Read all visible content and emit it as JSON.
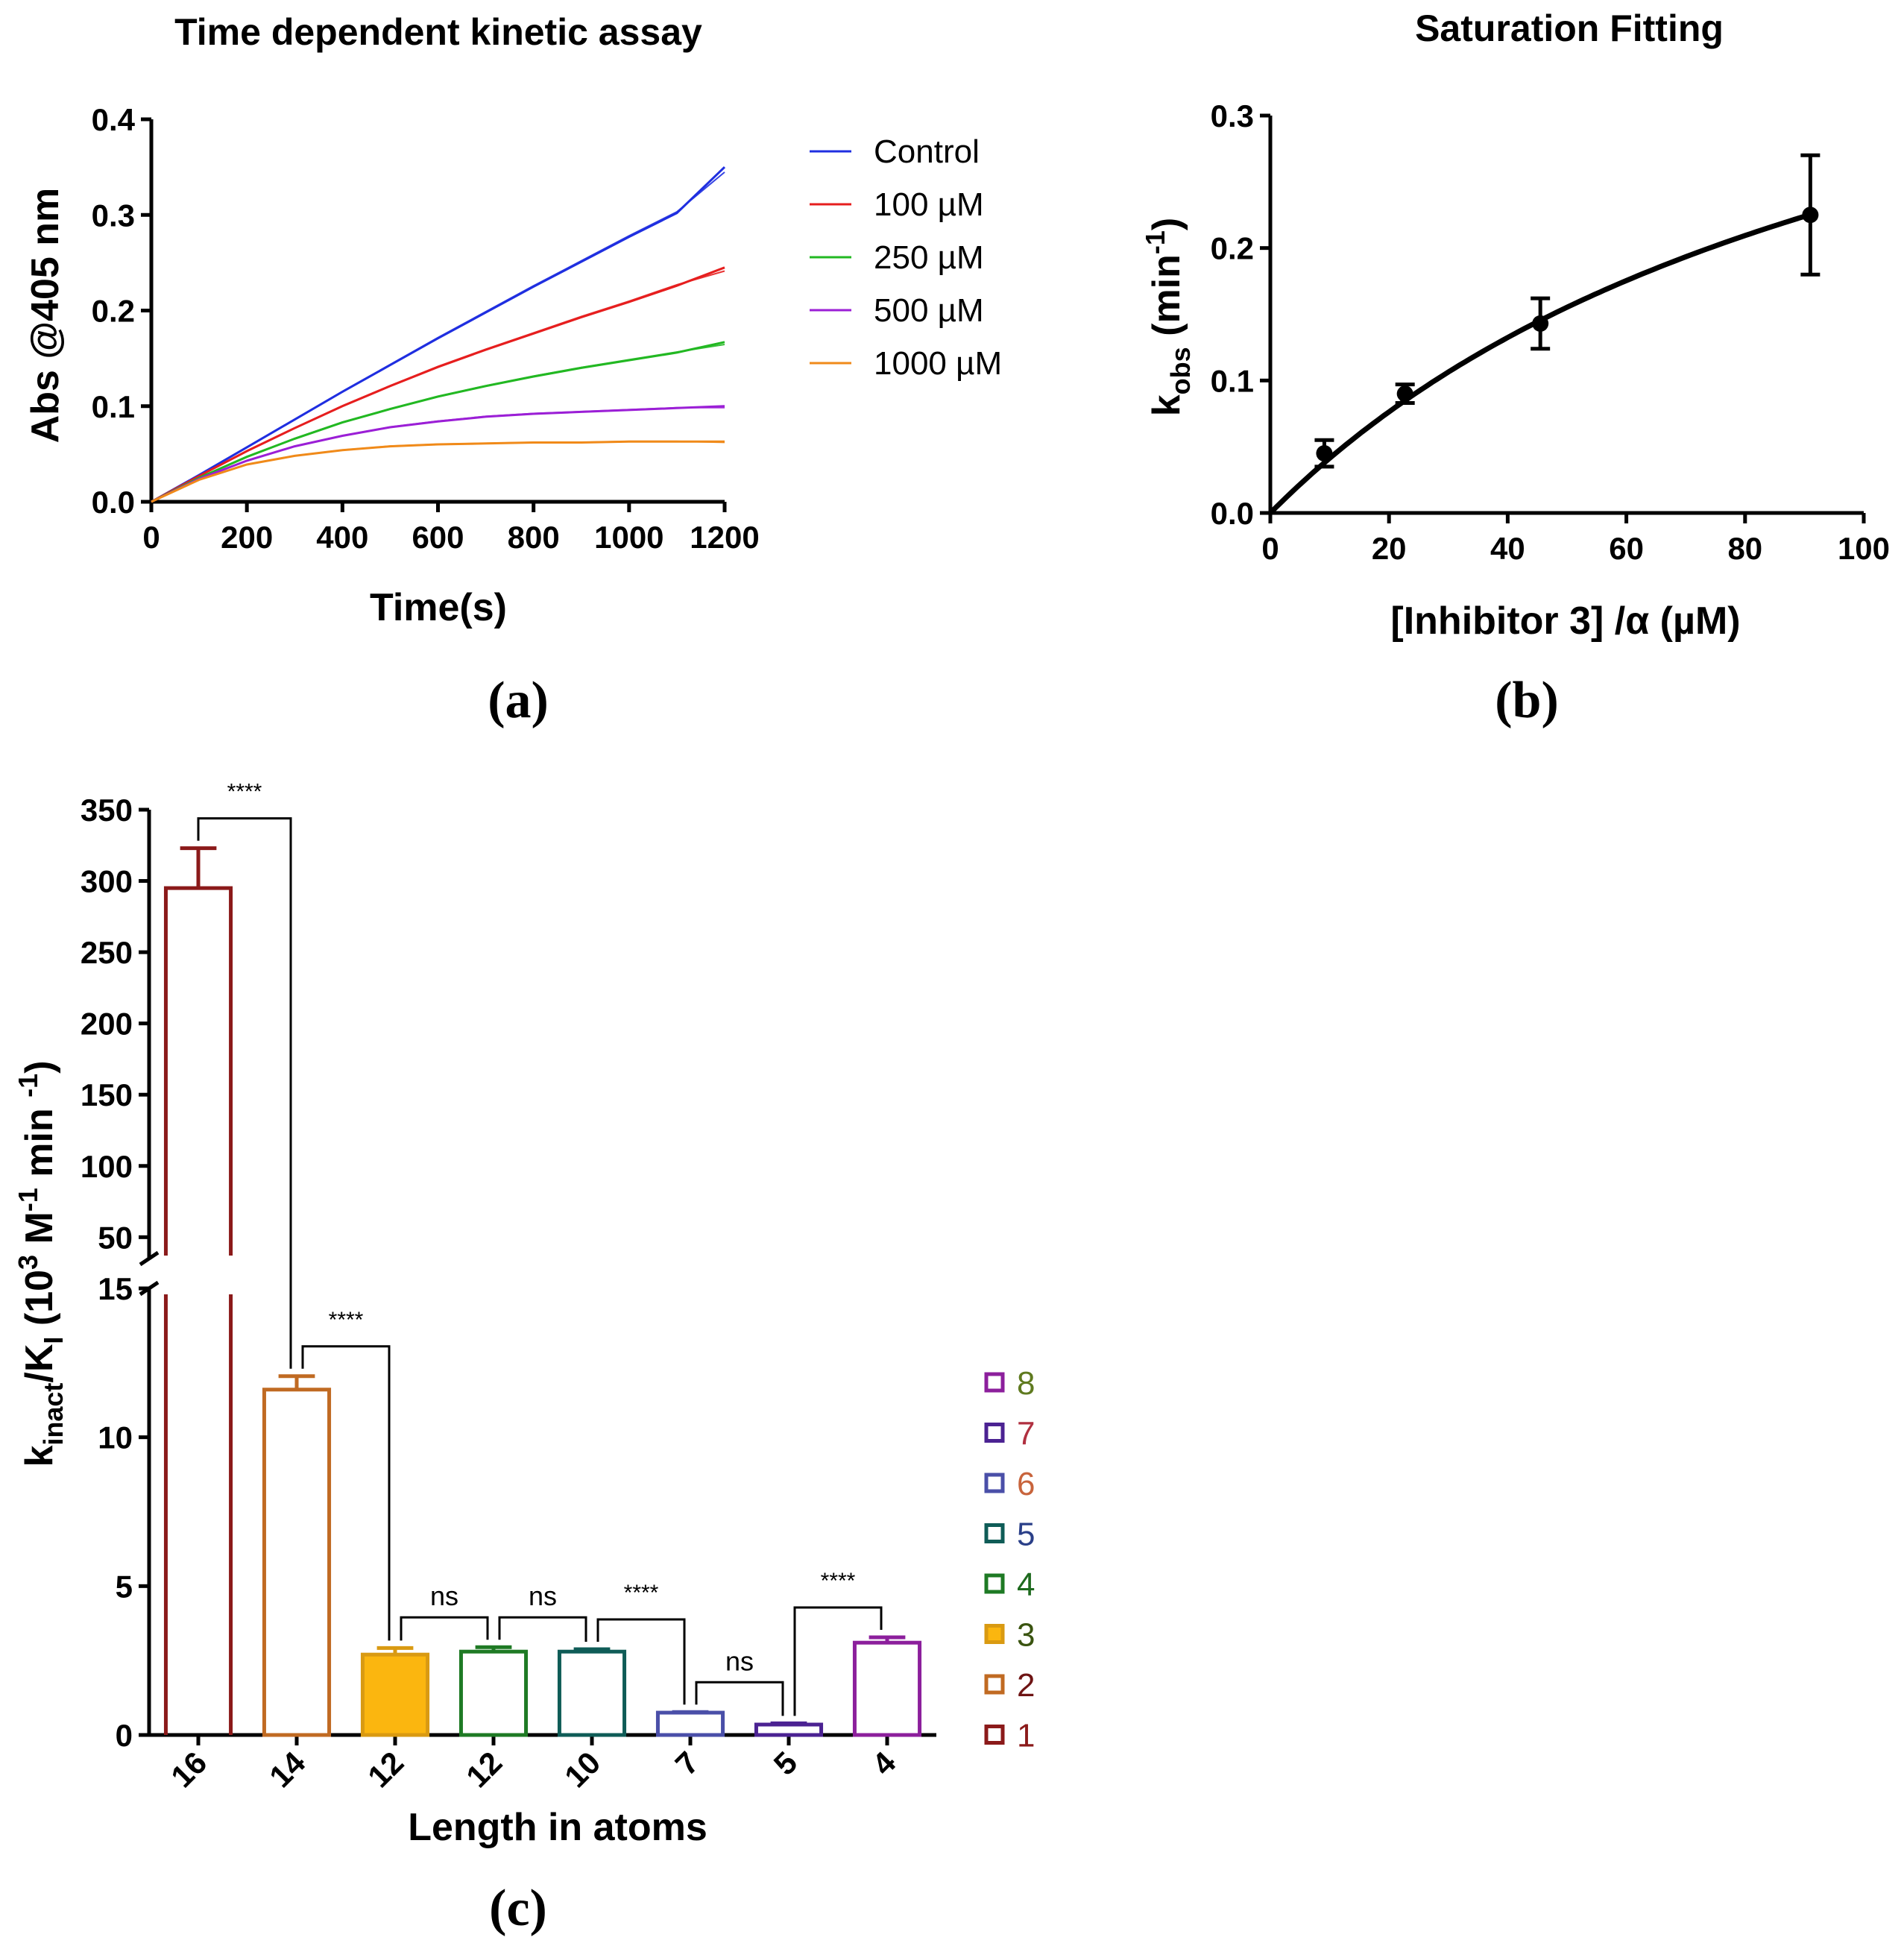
{
  "panel_labels": [
    "(a)",
    "(b)",
    "(c)"
  ],
  "colors": {
    "control": "#1f2fe0",
    "c100": "#e61e1e",
    "c250": "#22b822",
    "c500": "#9b1fd6",
    "c1000": "#f08a1a",
    "axis": "#000000"
  },
  "chart_data": [
    {
      "type": "line",
      "title": "Time dependent kinetic assay",
      "xlabel": "Time(s)",
      "ylabel": "Abs @405 nm",
      "xlim": [
        0,
        1200
      ],
      "ylim": [
        0,
        0.4
      ],
      "xticks": [
        "0",
        "200",
        "400",
        "600",
        "800",
        "1000",
        "1200"
      ],
      "yticks": [
        "0.0",
        "0.1",
        "0.2",
        "0.3",
        "0.4"
      ],
      "x": [
        0,
        100,
        200,
        300,
        400,
        500,
        600,
        700,
        800,
        900,
        1000,
        1100,
        1200
      ],
      "series": [
        {
          "name": "Control",
          "color": "#1f2fe0",
          "values": [
            0,
            0.028,
            0.057,
            0.086,
            0.115,
            0.143,
            0.171,
            0.198,
            0.225,
            0.251,
            0.277,
            0.302,
            0.35
          ]
        },
        {
          "name": "100 µM",
          "color": "#e61e1e",
          "values": [
            0,
            0.027,
            0.053,
            0.077,
            0.1,
            0.121,
            0.141,
            0.159,
            0.176,
            0.193,
            0.209,
            0.226,
            0.245
          ]
        },
        {
          "name": "250 µM",
          "color": "#22b822",
          "values": [
            0,
            0.025,
            0.047,
            0.066,
            0.083,
            0.097,
            0.11,
            0.121,
            0.131,
            0.14,
            0.148,
            0.156,
            0.167
          ]
        },
        {
          "name": "500 µM",
          "color": "#9b1fd6",
          "values": [
            0,
            0.024,
            0.043,
            0.058,
            0.069,
            0.078,
            0.084,
            0.089,
            0.092,
            0.094,
            0.096,
            0.098,
            0.1
          ]
        },
        {
          "name": "1000 µM",
          "color": "#f08a1a",
          "values": [
            0,
            0.023,
            0.039,
            0.048,
            0.054,
            0.058,
            0.06,
            0.061,
            0.062,
            0.062,
            0.063,
            0.063,
            0.063
          ]
        }
      ],
      "legend_position": "right"
    },
    {
      "type": "scatter",
      "title": "Saturation Fitting",
      "xlabel": "[Inhibitor 3] /α (µM)",
      "ylabel": "k_obs (min^-1)",
      "ylabel_parts": [
        "k",
        "obs",
        " (min",
        "-1",
        ")"
      ],
      "xlim": [
        0,
        100
      ],
      "ylim": [
        0,
        0.3
      ],
      "xticks": [
        "0",
        "20",
        "40",
        "60",
        "80",
        "100"
      ],
      "yticks": [
        "0.0",
        "0.1",
        "0.2",
        "0.3"
      ],
      "points": [
        {
          "x": 9.1,
          "y": 0.045,
          "err": 0.01
        },
        {
          "x": 22.7,
          "y": 0.09,
          "err": 0.007
        },
        {
          "x": 45.5,
          "y": 0.143,
          "err": 0.019
        },
        {
          "x": 91,
          "y": 0.225,
          "err": 0.045
        }
      ],
      "fit": {
        "model": "kinact*I/(KI+I)",
        "kinact": 0.5,
        "KI": 111
      }
    },
    {
      "type": "bar",
      "xlabel": "Length in atoms",
      "ylabel": "k_inact/K_I (10^3 M^-1 min^-1)",
      "ylabel_parts": [
        "k",
        "inact",
        "/K",
        "I",
        " (10",
        "3",
        " M",
        "-1",
        " min ",
        "-1",
        ")"
      ],
      "categories": [
        "16",
        "14",
        "12",
        "12",
        "10",
        "7",
        "5",
        "4"
      ],
      "compound_ids": [
        "1",
        "2",
        "3",
        "4",
        "5",
        "6",
        "7",
        "8"
      ],
      "values": [
        295,
        11.6,
        2.7,
        2.8,
        2.8,
        0.75,
        0.35,
        3.1
      ],
      "errors": [
        28,
        0.45,
        0.22,
        0.15,
        0.08,
        0.02,
        0.04,
        0.18
      ],
      "bar_colors": [
        "#8b1a1a",
        "#c06a22",
        "#d99a12",
        "#1e7a24",
        "#0f5c57",
        "#4a4fa8",
        "#4b2292",
        "#8c1f9c"
      ],
      "bar_fill": [
        "none",
        "none",
        "#fbb60f",
        "none",
        "none",
        "none",
        "none",
        "none"
      ],
      "ylim_lower": [
        0,
        15
      ],
      "ylim_upper": [
        35,
        350
      ],
      "yticks_lower": [
        "0",
        "5",
        "10",
        "15"
      ],
      "yticks_upper": [
        "50",
        "100",
        "150",
        "200",
        "250",
        "300",
        "350"
      ],
      "comparisons": [
        {
          "from": 0,
          "to": 1,
          "label": "****"
        },
        {
          "from": 1,
          "to": 2,
          "label": "****"
        },
        {
          "from": 2,
          "to": 3,
          "label": "ns"
        },
        {
          "from": 3,
          "to": 4,
          "label": "ns"
        },
        {
          "from": 4,
          "to": 5,
          "label": "****"
        },
        {
          "from": 5,
          "to": 6,
          "label": "ns"
        },
        {
          "from": 6,
          "to": 7,
          "label": "****"
        }
      ],
      "legend": [
        {
          "label": "8",
          "box_color": "#8c1f9c",
          "text_color": "#5f7a1f",
          "fill": "none"
        },
        {
          "label": "7",
          "box_color": "#4b2292",
          "text_color": "#b03040",
          "fill": "none"
        },
        {
          "label": "6",
          "box_color": "#4a4fa8",
          "text_color": "#c8643c",
          "fill": "none"
        },
        {
          "label": "5",
          "box_color": "#0f5c57",
          "text_color": "#2a3f88",
          "fill": "none"
        },
        {
          "label": "4",
          "box_color": "#1e7a24",
          "text_color": "#1e6a1e",
          "fill": "none"
        },
        {
          "label": "3",
          "box_color": "#d99a12",
          "text_color": "#3a5410",
          "fill": "#fbb60f"
        },
        {
          "label": "2",
          "box_color": "#c06a22",
          "text_color": "#6e1414",
          "fill": "none"
        },
        {
          "label": "1",
          "box_color": "#8b1a1a",
          "text_color": "#8b1a1a",
          "fill": "none"
        }
      ]
    }
  ]
}
